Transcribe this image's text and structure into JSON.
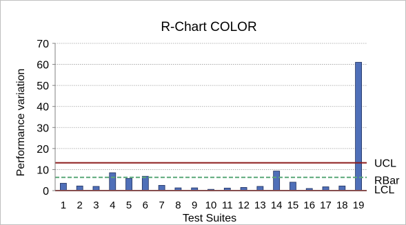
{
  "chart_data": {
    "type": "bar",
    "title": "R-Chart COLOR",
    "xlabel": "Test Suites",
    "ylabel": "Performance variation",
    "ylim": [
      0,
      70
    ],
    "yticks": [
      0,
      10,
      20,
      30,
      40,
      50,
      60,
      70
    ],
    "categories": [
      "1",
      "2",
      "3",
      "4",
      "5",
      "6",
      "7",
      "8",
      "9",
      "10",
      "11",
      "12",
      "13",
      "14",
      "15",
      "16",
      "17",
      "18",
      "19"
    ],
    "values": [
      3.5,
      2.2,
      2.0,
      8.5,
      5.8,
      6.8,
      2.5,
      1.3,
      1.3,
      0.6,
      1.2,
      1.5,
      2.0,
      9.3,
      4.0,
      1.0,
      1.8,
      2.2,
      61.0
    ],
    "grid": true,
    "bar_color": "#4f6fb8",
    "control_lines": [
      {
        "name": "UCL",
        "value": 13.2,
        "color": "#8b1a1a",
        "dash": false
      },
      {
        "name": "RBar",
        "value": 6.3,
        "color": "#5aa878",
        "dash": true
      },
      {
        "name": "LCL",
        "value": 0.0,
        "color": "#8b1a1a",
        "dash": false
      }
    ]
  }
}
